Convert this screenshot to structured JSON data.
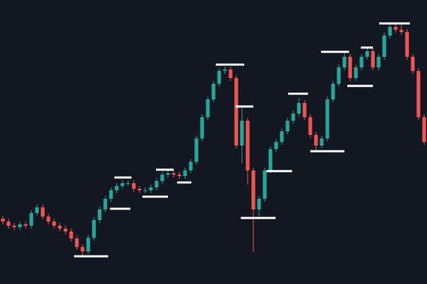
{
  "chart_data": {
    "type": "candlestick",
    "x": [
      0,
      1,
      2,
      3,
      4,
      5,
      6,
      7,
      8,
      9,
      10,
      11,
      12,
      13,
      14,
      15,
      16,
      17,
      18,
      19,
      20,
      21,
      22,
      23,
      24,
      25,
      26,
      27,
      28,
      29,
      30,
      31,
      32,
      33,
      34,
      35,
      36,
      37,
      38,
      39,
      40,
      41,
      42,
      43,
      44,
      45,
      46,
      47,
      48,
      49,
      50,
      51,
      52,
      53,
      54,
      55,
      56,
      57,
      58,
      59,
      60,
      61,
      62,
      63,
      64,
      65,
      66,
      67,
      68,
      69,
      70,
      71,
      72,
      73,
      74
    ],
    "open": [
      92,
      88,
      82,
      80,
      84,
      82,
      100,
      108,
      95,
      88,
      82,
      78,
      74,
      64,
      52,
      46,
      65,
      90,
      105,
      120,
      132,
      138,
      142,
      142,
      134,
      132,
      132,
      136,
      145,
      154,
      156,
      154,
      152,
      160,
      172,
      205,
      235,
      260,
      282,
      300,
      302,
      290,
      195,
      230,
      160,
      105,
      120,
      160,
      190,
      200,
      215,
      230,
      240,
      255,
      235,
      210,
      195,
      205,
      260,
      282,
      305,
      320,
      290,
      305,
      320,
      328,
      305,
      320,
      350,
      362,
      358,
      355,
      320,
      300,
      235
    ],
    "high": [
      96,
      92,
      86,
      88,
      88,
      104,
      112,
      112,
      99,
      92,
      86,
      82,
      78,
      68,
      56,
      69,
      94,
      109,
      124,
      136,
      142,
      146,
      146,
      146,
      138,
      136,
      140,
      149,
      158,
      160,
      160,
      158,
      164,
      176,
      209,
      239,
      264,
      286,
      304,
      306,
      306,
      294,
      250,
      234,
      164,
      124,
      164,
      194,
      204,
      219,
      234,
      244,
      262,
      259,
      239,
      214,
      209,
      264,
      286,
      309,
      328,
      324,
      309,
      324,
      334,
      332,
      324,
      354,
      368,
      366,
      366,
      359,
      324,
      304,
      239
    ],
    "low": [
      84,
      78,
      76,
      76,
      78,
      78,
      96,
      91,
      84,
      78,
      74,
      70,
      60,
      48,
      40,
      42,
      61,
      86,
      101,
      116,
      128,
      134,
      138,
      130,
      128,
      128,
      128,
      132,
      141,
      150,
      150,
      148,
      148,
      156,
      168,
      201,
      231,
      256,
      278,
      296,
      286,
      191,
      170,
      140,
      45,
      95,
      116,
      156,
      186,
      196,
      211,
      226,
      236,
      231,
      206,
      188,
      191,
      201,
      256,
      278,
      301,
      286,
      286,
      301,
      316,
      301,
      301,
      316,
      346,
      354,
      351,
      316,
      296,
      231,
      196
    ],
    "close": [
      88,
      82,
      80,
      84,
      82,
      100,
      108,
      95,
      88,
      82,
      78,
      74,
      64,
      52,
      46,
      65,
      90,
      105,
      120,
      132,
      138,
      142,
      142,
      134,
      132,
      132,
      136,
      145,
      154,
      156,
      154,
      152,
      160,
      172,
      205,
      235,
      260,
      282,
      300,
      302,
      290,
      195,
      230,
      160,
      105,
      120,
      160,
      190,
      200,
      215,
      230,
      240,
      255,
      235,
      210,
      195,
      205,
      260,
      282,
      305,
      320,
      290,
      305,
      320,
      328,
      305,
      320,
      350,
      362,
      358,
      355,
      320,
      300,
      235,
      200
    ],
    "up_color": "#26a69a",
    "down_color": "#ef5350",
    "xlim": [
      -0.5,
      74.5
    ],
    "ylim": [
      0,
      400
    ],
    "level_color": "#ffffff",
    "levels": [
      {
        "value": 39,
        "x": [
          12.5,
          18.5
        ]
      },
      {
        "value": 106,
        "x": [
          18.8,
          22.4
        ]
      },
      {
        "value": 150,
        "x": [
          19.6,
          22.6
        ]
      },
      {
        "value": 123,
        "x": [
          24.5,
          29
        ]
      },
      {
        "value": 161,
        "x": [
          26.9,
          30
        ]
      },
      {
        "value": 143,
        "x": [
          30.6,
          33.1
        ]
      },
      {
        "value": 309,
        "x": [
          37.4,
          42.4
        ]
      },
      {
        "value": 250,
        "x": [
          40.9,
          44
        ]
      },
      {
        "value": 93,
        "x": [
          41.8,
          47.9
        ]
      },
      {
        "value": 159,
        "x": [
          46.3,
          50.8
        ]
      },
      {
        "value": 268,
        "x": [
          50.1,
          53.6
        ]
      },
      {
        "value": 187,
        "x": [
          54,
          60
        ]
      },
      {
        "value": 327,
        "x": [
          55.9,
          60.8
        ]
      },
      {
        "value": 279,
        "x": [
          60.5,
          65
        ]
      },
      {
        "value": 333,
        "x": [
          62.9,
          65
        ]
      },
      {
        "value": 367,
        "x": [
          66.1,
          71.5
        ]
      }
    ]
  }
}
